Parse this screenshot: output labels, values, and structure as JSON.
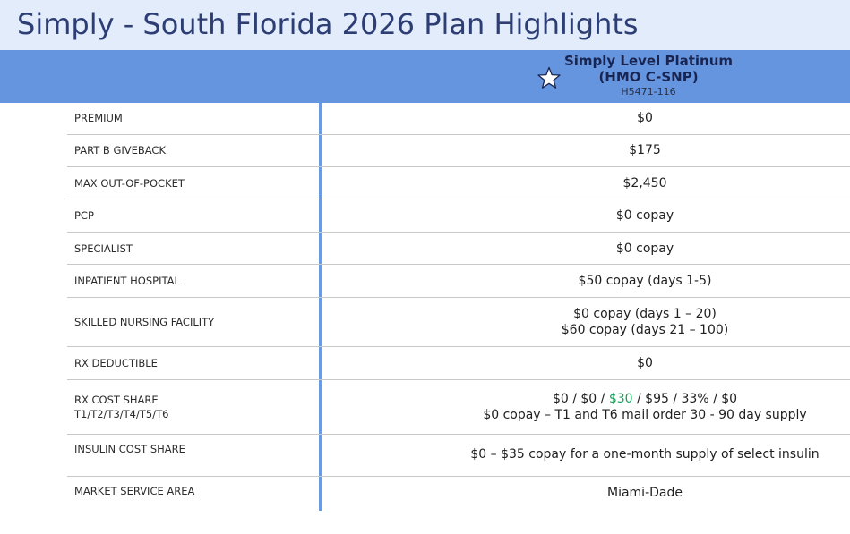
{
  "page": {
    "title": "Simply - South Florida 2026 Plan Highlights"
  },
  "plan": {
    "name_line1": "Simply Level Platinum",
    "name_line2": "(HMO C-SNP)",
    "code": "H5471-116",
    "icon": "star-icon"
  },
  "rows": [
    {
      "label": "PREMIUM",
      "value": "$0"
    },
    {
      "label": "PART B GIVEBACK",
      "value": "$175"
    },
    {
      "label": "MAX OUT-OF-POCKET",
      "value": "$2,450"
    },
    {
      "label": "PCP",
      "value": "$0 copay"
    },
    {
      "label": "SPECIALIST",
      "value": "$0 copay"
    },
    {
      "label": "INPATIENT HOSPITAL",
      "value": "$50 copay (days 1-5)"
    },
    {
      "label": "SKILLED NURSING FACILITY",
      "value_line1": "$0 copay (days 1 – 20)",
      "value_line2": "$60 copay (days 21 – 100)"
    },
    {
      "label": "RX DEDUCTIBLE",
      "value": "$0"
    },
    {
      "label_line1": "RX COST SHARE",
      "label_line2": "T1/T2/T3/T4/T5/T6",
      "value_part1": "$0 / $0 / ",
      "value_part2": "$30",
      "value_part3": " / $95 / 33% / $0",
      "value_line2": "$0 copay – T1 and T6 mail order 30 - 90 day supply"
    },
    {
      "label": "INSULIN COST SHARE",
      "value": "$0 – $35 copay for a one-month supply of select insulin"
    },
    {
      "label": "MARKET SERVICE AREA",
      "value": "Miami-Dade"
    }
  ],
  "colors": {
    "header_band": "#6495de",
    "title_bar": "#e3ecfa",
    "highlight_green": "#1aa05a",
    "divider": "#6a9ae0"
  }
}
